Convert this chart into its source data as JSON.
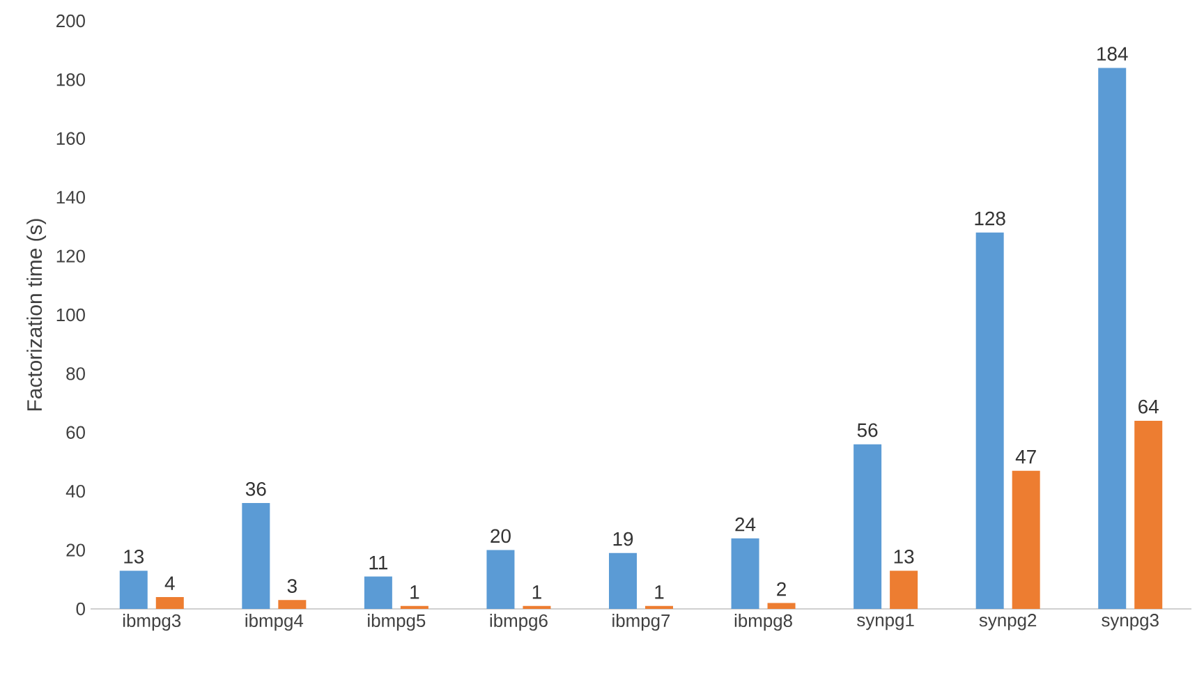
{
  "chart_data": {
    "type": "bar",
    "ylabel": "Factorization time (s)",
    "categories": [
      "ibmpg3",
      "ibmpg4",
      "ibmpg5",
      "ibmpg6",
      "ibmpg7",
      "ibmpg8",
      "synpg1",
      "synpg2",
      "synpg3"
    ],
    "series": [
      {
        "color": "#5b9bd5",
        "values": [
          13,
          36,
          11,
          20,
          19,
          24,
          56,
          128,
          184
        ]
      },
      {
        "color": "#ed7d31",
        "values": [
          4,
          3,
          1,
          1,
          1,
          2,
          13,
          47,
          64
        ]
      }
    ],
    "ylim": [
      0,
      200
    ],
    "yticks": [
      0,
      20,
      40,
      60,
      80,
      100,
      120,
      140,
      160,
      180,
      200
    ],
    "data_labels": true
  }
}
